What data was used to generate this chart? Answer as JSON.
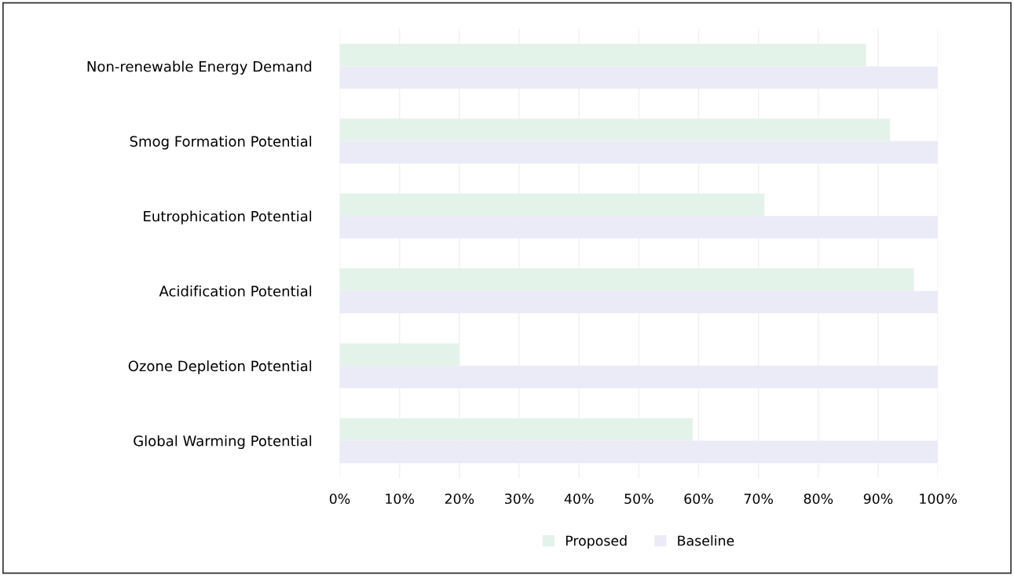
{
  "chart_data": {
    "type": "bar",
    "orientation": "horizontal",
    "categories": [
      "Non-renewable Energy Demand",
      "Smog Formation Potential",
      "Eutrophication Potential",
      "Acidification Potential",
      "Ozone Depletion Potential",
      "Global Warming Potential"
    ],
    "series": [
      {
        "name": "Proposed",
        "color": "#e4f3ea",
        "values": [
          88,
          92,
          71,
          96,
          20,
          59
        ]
      },
      {
        "name": "Baseline",
        "color": "#ebebf8",
        "values": [
          100,
          100,
          100,
          100,
          100,
          100
        ]
      }
    ],
    "xlim": [
      0,
      100
    ],
    "xticks": [
      {
        "value": 0,
        "label": "0%"
      },
      {
        "value": 10,
        "label": "10%"
      },
      {
        "value": 20,
        "label": "20%"
      },
      {
        "value": 30,
        "label": "30%"
      },
      {
        "value": 40,
        "label": "40%"
      },
      {
        "value": 50,
        "label": "50%"
      },
      {
        "value": 60,
        "label": "60%"
      },
      {
        "value": 70,
        "label": "70%"
      },
      {
        "value": 80,
        "label": "80%"
      },
      {
        "value": 90,
        "label": "90%"
      },
      {
        "value": 100,
        "label": "100%"
      }
    ],
    "grid": "x",
    "legend": "bottom"
  }
}
